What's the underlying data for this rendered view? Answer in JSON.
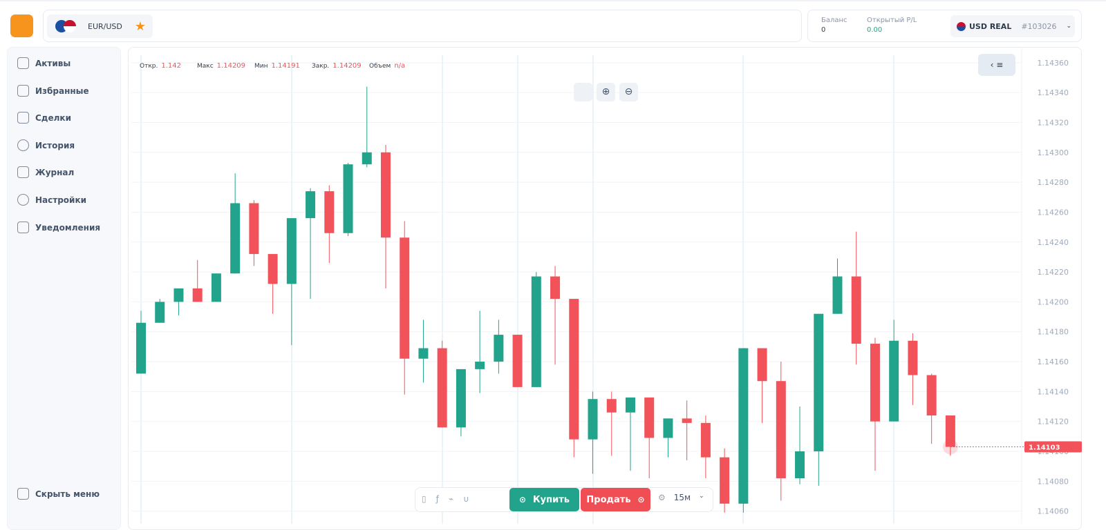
{
  "header": {
    "symbol": "EUR/USD",
    "balance_label": "Баланс",
    "balance": 0,
    "pl_label": "Открытый P/L",
    "pl": "0.00",
    "account": "USD REAL",
    "account_id": "#103026"
  },
  "sidebar": {
    "items": [
      "Активы",
      "Избранные",
      "Сделки",
      "История",
      "Журнал",
      "Настройки",
      "Уведомления"
    ],
    "collapse": "Скрыть меню"
  },
  "toolbar": {
    "buy": "Купить",
    "sell": "Продать",
    "timeframe": "15м"
  },
  "chart_data": {
    "type": "candlestick",
    "legend": [
      {
        "label": "Откр.",
        "value": 1.142
      },
      {
        "label": "Макс",
        "value": 1.14209
      },
      {
        "label": "Мин",
        "value": 1.14191
      },
      {
        "label": "Закр.",
        "value": 1.14209
      },
      {
        "label": "Объем",
        "value": "n/a"
      }
    ],
    "open": [
      1.14152,
      1.14186,
      1.142,
      1.14209,
      1.142,
      1.14219,
      1.14266,
      1.14232,
      1.14212,
      1.14256,
      1.14274,
      1.14246,
      1.14292,
      1.143,
      1.14243,
      1.14162,
      1.14169,
      1.14116,
      1.14155,
      1.1416,
      1.14178,
      1.14143,
      1.14217,
      1.14202,
      1.14108,
      1.14135,
      1.14126,
      1.14136,
      1.14109,
      1.14122,
      1.14119,
      1.14096,
      1.14065,
      1.14169,
      1.14147,
      1.14082,
      1.141,
      1.14192,
      1.14217,
      1.14172,
      1.1412,
      1.14174,
      1.14151,
      1.14124
    ],
    "high": [
      1.14194,
      1.14202,
      1.14209,
      1.14228,
      1.14219,
      1.14286,
      1.14268,
      1.14232,
      1.14256,
      1.14276,
      1.14278,
      1.14293,
      1.14344,
      1.14305,
      1.14254,
      1.14188,
      1.14174,
      1.14155,
      1.14194,
      1.14188,
      1.14178,
      1.1422,
      1.14224,
      1.14202,
      1.1414,
      1.1414,
      1.14136,
      1.14136,
      1.14122,
      1.14134,
      1.14124,
      1.14102,
      1.14169,
      1.14169,
      1.1416,
      1.1413,
      1.14192,
      1.14229,
      1.14247,
      1.14176,
      1.14188,
      1.14179,
      1.14152,
      1.14124
    ],
    "low": [
      1.14152,
      1.14186,
      1.14191,
      1.142,
      1.142,
      1.14219,
      1.14224,
      1.14192,
      1.14171,
      1.14202,
      1.14226,
      1.14244,
      1.1429,
      1.14209,
      1.14138,
      1.14146,
      1.14116,
      1.1411,
      1.14139,
      1.14152,
      1.14143,
      1.14143,
      1.14158,
      1.14096,
      1.14085,
      1.14097,
      1.14087,
      1.14082,
      1.14096,
      1.14094,
      1.14082,
      1.14059,
      1.14059,
      1.14119,
      1.14067,
      1.14078,
      1.14077,
      1.14192,
      1.14158,
      1.14087,
      1.1412,
      1.14131,
      1.14105,
      1.14097
    ],
    "close": [
      1.14186,
      1.142,
      1.14209,
      1.142,
      1.14219,
      1.14266,
      1.14232,
      1.14212,
      1.14256,
      1.14274,
      1.14246,
      1.14292,
      1.143,
      1.14243,
      1.14162,
      1.14169,
      1.14116,
      1.14155,
      1.1416,
      1.14178,
      1.14143,
      1.14217,
      1.14202,
      1.14108,
      1.14135,
      1.14126,
      1.14136,
      1.14109,
      1.14122,
      1.14119,
      1.14096,
      1.14065,
      1.14169,
      1.14147,
      1.14082,
      1.141,
      1.14192,
      1.14217,
      1.14172,
      1.1412,
      1.14174,
      1.14151,
      1.14124,
      1.14103
    ],
    "up_color": "#22a38b",
    "down_color": "#f2525a",
    "ylim": [
      1.14058,
      1.14365
    ],
    "yticks": [
      {
        "value": 1.1436,
        "label": "1.14360"
      },
      {
        "value": 1.1434,
        "label": "1.14340"
      },
      {
        "value": 1.1432,
        "label": "1.14320"
      },
      {
        "value": 1.143,
        "label": "1.14300"
      },
      {
        "value": 1.1428,
        "label": "1.14280"
      },
      {
        "value": 1.1426,
        "label": "1.14260"
      },
      {
        "value": 1.1424,
        "label": "1.14240"
      },
      {
        "value": 1.1422,
        "label": "1.14220"
      },
      {
        "value": 1.142,
        "label": "1.14200"
      },
      {
        "value": 1.1418,
        "label": "1.14180"
      },
      {
        "value": 1.1416,
        "label": "1.14160"
      },
      {
        "value": 1.1414,
        "label": "1.14140"
      },
      {
        "value": 1.1412,
        "label": "1.14120"
      },
      {
        "value": 1.141,
        "label": "1.14100"
      },
      {
        "value": 1.1408,
        "label": "1.14080"
      },
      {
        "value": 1.1406,
        "label": "1.14060"
      }
    ],
    "last_price": 1.14103,
    "grid": true
  }
}
